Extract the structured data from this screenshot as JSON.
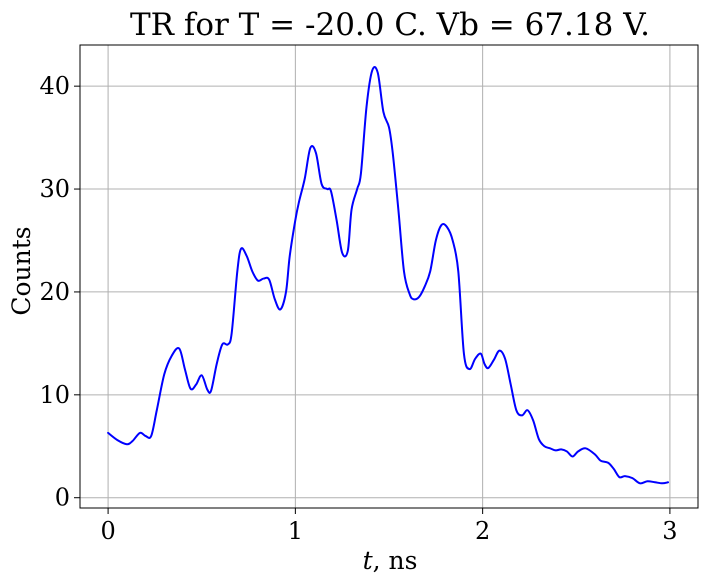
{
  "chart_data": {
    "type": "line",
    "title": "TR for T = -20.0 C. Vb = 67.18 V.",
    "xlabel_var": "t",
    "xlabel_unit": ", ns",
    "ylabel": "Counts",
    "xlim": [
      -0.15,
      3.15
    ],
    "ylim": [
      -1,
      44
    ],
    "xticks": [
      0,
      1,
      2,
      3
    ],
    "yticks": [
      0,
      10,
      20,
      30,
      40
    ],
    "xtick_labels": [
      "0",
      "1",
      "2",
      "3"
    ],
    "ytick_labels": [
      "0",
      "10",
      "20",
      "30",
      "40"
    ],
    "grid": true,
    "line_color": "#0000ff",
    "series": [
      {
        "x": [
          0.0,
          0.05,
          0.1,
          0.13,
          0.17,
          0.2,
          0.23,
          0.26,
          0.3,
          0.34,
          0.38,
          0.41,
          0.44,
          0.47,
          0.5,
          0.53,
          0.55,
          0.58,
          0.61,
          0.64,
          0.66,
          0.69,
          0.71,
          0.74,
          0.77,
          0.8,
          0.83,
          0.86,
          0.89,
          0.92,
          0.95,
          0.97,
          1.0,
          1.02,
          1.05,
          1.08,
          1.11,
          1.14,
          1.17,
          1.19,
          1.22,
          1.25,
          1.28,
          1.3,
          1.33,
          1.35,
          1.38,
          1.41,
          1.44,
          1.47,
          1.5,
          1.52,
          1.55,
          1.58,
          1.61,
          1.63,
          1.66,
          1.69,
          1.72,
          1.75,
          1.78,
          1.81,
          1.84,
          1.87,
          1.9,
          1.93,
          1.96,
          1.99,
          2.01,
          2.03,
          2.06,
          2.09,
          2.12,
          2.15,
          2.18,
          2.21,
          2.24,
          2.27,
          2.3,
          2.33,
          2.36,
          2.39,
          2.42,
          2.45,
          2.48,
          2.51,
          2.55,
          2.6,
          2.63,
          2.67,
          2.7,
          2.73,
          2.76,
          2.8,
          2.84,
          2.88,
          2.92,
          2.96,
          2.99
        ],
        "y": [
          6.3,
          5.6,
          5.2,
          5.5,
          6.3,
          6.0,
          6.0,
          8.5,
          12.0,
          13.8,
          14.5,
          12.5,
          10.6,
          11.0,
          11.9,
          10.5,
          10.4,
          13.0,
          14.9,
          14.9,
          16.0,
          22.0,
          24.2,
          23.5,
          22.0,
          21.1,
          21.3,
          21.2,
          19.3,
          18.3,
          20.0,
          23.5,
          27.0,
          28.8,
          31.0,
          34.0,
          33.5,
          30.5,
          30.0,
          29.8,
          27.0,
          23.8,
          24.0,
          28.0,
          30.0,
          31.5,
          38.0,
          41.5,
          41.3,
          37.5,
          36.0,
          33.5,
          28.0,
          22.0,
          19.8,
          19.3,
          19.5,
          20.5,
          22.0,
          25.0,
          26.5,
          26.3,
          25.0,
          22.0,
          14.0,
          12.5,
          13.5,
          14.0,
          13.0,
          12.6,
          13.4,
          14.3,
          13.5,
          11.0,
          8.5,
          8.0,
          8.5,
          7.5,
          5.7,
          5.0,
          4.8,
          4.6,
          4.7,
          4.5,
          4.0,
          4.5,
          4.8,
          4.2,
          3.6,
          3.4,
          2.8,
          2.0,
          2.1,
          1.9,
          1.4,
          1.6,
          1.5,
          1.4,
          1.5
        ]
      }
    ]
  }
}
